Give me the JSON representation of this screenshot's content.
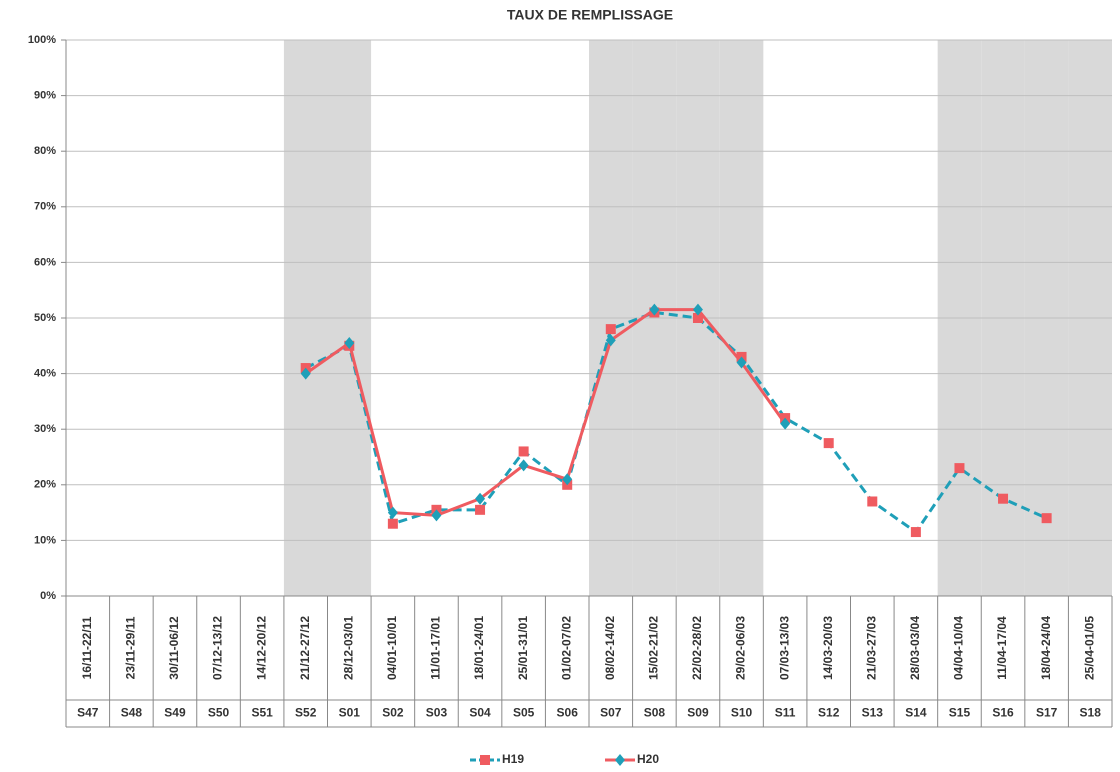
{
  "chart_data": {
    "type": "line",
    "title": "TAUX DE REMPLISSAGE",
    "categories": [
      "16/11-22/11",
      "23/11-29/11",
      "30/11-06/12",
      "07/12-13/12",
      "14/12-20/12",
      "21/12-27/12",
      "28/12-03/01",
      "04/01-10/01",
      "11/01-17/01",
      "18/01-24/01",
      "25/01-31/01",
      "01/02-07/02",
      "08/02-14/02",
      "15/02-21/02",
      "22/02-28/02",
      "29/02-06/03",
      "07/03-13/03",
      "14/03-20/03",
      "21/03-27/03",
      "28/03-03/04",
      "04/04-10/04",
      "11/04-17/04",
      "18/04-24/04",
      "25/04-01/05"
    ],
    "weeks": [
      "S47",
      "S48",
      "S49",
      "S50",
      "S51",
      "S52",
      "S01",
      "S02",
      "S03",
      "S04",
      "S05",
      "S06",
      "S07",
      "S08",
      "S09",
      "S10",
      "S11",
      "S12",
      "S13",
      "S14",
      "S15",
      "S16",
      "S17",
      "S18"
    ],
    "shaded": [
      false,
      false,
      false,
      false,
      false,
      true,
      true,
      false,
      false,
      false,
      false,
      false,
      true,
      true,
      true,
      true,
      false,
      false,
      false,
      false,
      true,
      true,
      true,
      true
    ],
    "shade_color": "#d9d9d9",
    "series": [
      {
        "name": "H19",
        "color": "#1f9fb8",
        "line_style": "dashed",
        "marker": "square",
        "marker_color": "#ef5b60",
        "values": [
          null,
          null,
          null,
          null,
          null,
          41,
          45,
          13,
          15.5,
          15.5,
          26,
          20,
          48,
          51,
          50,
          43,
          32,
          27.5,
          17,
          11.5,
          23,
          17.5,
          14,
          null
        ]
      },
      {
        "name": "H20",
        "color": "#ef5b60",
        "line_style": "solid",
        "marker": "diamond",
        "marker_color": "#1f9fb8",
        "values": [
          null,
          null,
          null,
          null,
          null,
          40,
          45.5,
          15,
          14.5,
          17.5,
          23.5,
          21,
          46,
          51.5,
          51.5,
          42,
          31,
          null,
          null,
          null,
          null,
          null,
          null,
          null
        ]
      }
    ],
    "ylim": [
      0,
      100
    ],
    "yticks": [
      {
        "value": 0,
        "label": "0%"
      },
      {
        "value": 10,
        "label": "10%"
      },
      {
        "value": 20,
        "label": "20%"
      },
      {
        "value": 30,
        "label": "30%"
      },
      {
        "value": 40,
        "label": "40%"
      },
      {
        "value": 50,
        "label": "50%"
      },
      {
        "value": 60,
        "label": "60%"
      },
      {
        "value": 70,
        "label": "70%"
      },
      {
        "value": 80,
        "label": "80%"
      },
      {
        "value": 90,
        "label": "90%"
      },
      {
        "value": 100,
        "label": "100%"
      }
    ],
    "grid": true,
    "legend": "bottom"
  }
}
